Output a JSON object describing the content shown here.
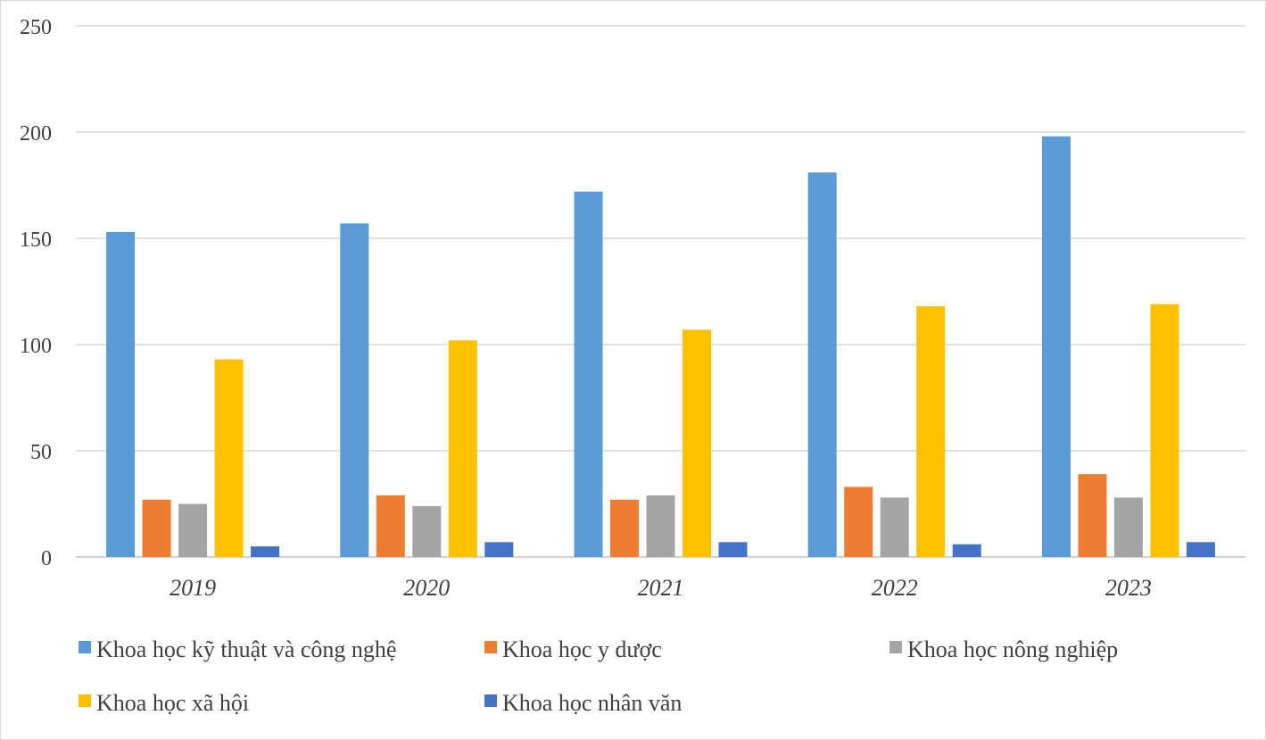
{
  "chart_data": {
    "type": "bar",
    "categories": [
      "2019",
      "2020",
      "2021",
      "2022",
      "2023"
    ],
    "series": [
      {
        "name": "Khoa học kỹ thuật và công nghệ",
        "color": "#5b9bd5",
        "values": [
          153,
          157,
          172,
          181,
          198
        ]
      },
      {
        "name": "Khoa học y dược",
        "color": "#ed7d31",
        "values": [
          27,
          29,
          27,
          33,
          39
        ]
      },
      {
        "name": "Khoa học nông nghiệp",
        "color": "#a5a5a5",
        "values": [
          25,
          24,
          29,
          28,
          28
        ]
      },
      {
        "name": "Khoa học xã hội",
        "color": "#ffc000",
        "values": [
          93,
          102,
          107,
          118,
          119
        ]
      },
      {
        "name": "Khoa học nhân văn",
        "color": "#4472c4",
        "values": [
          5,
          7,
          7,
          6,
          7
        ]
      }
    ],
    "ylim": [
      0,
      250
    ],
    "yticks": [
      0,
      50,
      100,
      150,
      200,
      250
    ],
    "grid": true,
    "legend_position": "bottom"
  }
}
